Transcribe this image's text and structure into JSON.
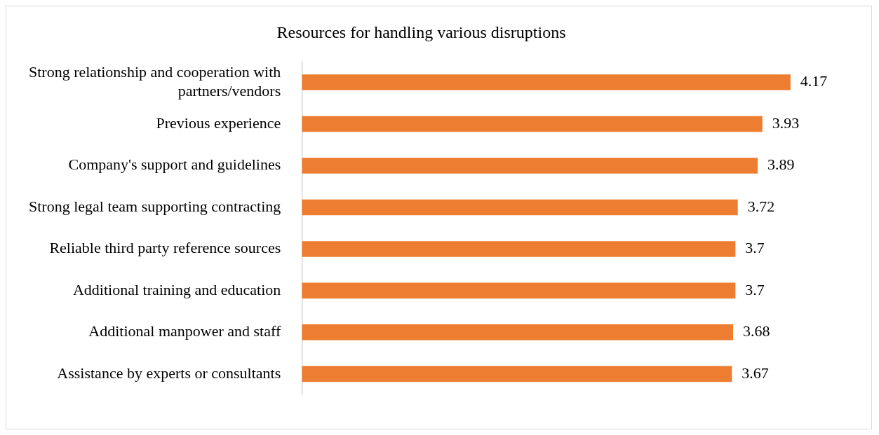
{
  "chart_data": {
    "type": "bar",
    "orientation": "horizontal",
    "title": "Resources for handling various disruptions",
    "categories": [
      "Strong relationship and cooperation with partners/vendors",
      "Previous experience",
      "Company's support and guidelines",
      "Strong legal team supporting contracting",
      "Reliable third party reference sources",
      "Additional training and education",
      "Additional manpower and staff",
      "Assistance by experts or consultants"
    ],
    "values": [
      4.17,
      3.93,
      3.89,
      3.72,
      3.7,
      3.7,
      3.68,
      3.67
    ],
    "color": "#ed7d31",
    "data_labels": true,
    "tick_labels": "y"
  }
}
